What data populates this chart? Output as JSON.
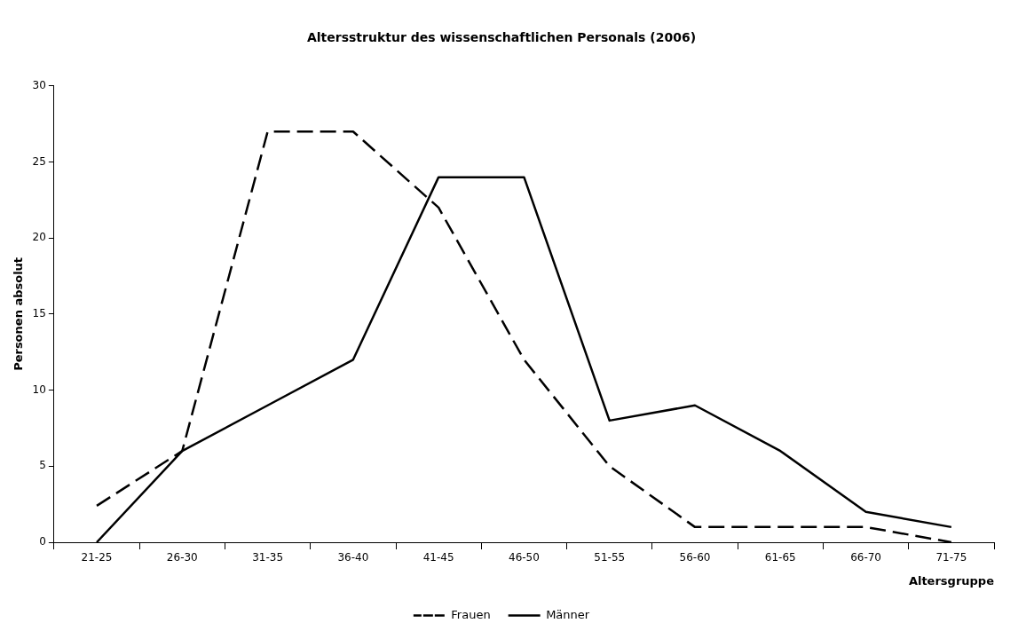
{
  "chart_data": {
    "type": "line",
    "title": "Altersstruktur des wissenschaftlichen Personals (2006)",
    "xlabel": "Altersgruppe",
    "ylabel": "Personen absolut",
    "categories": [
      "21-25",
      "26-30",
      "31-35",
      "36-40",
      "41-45",
      "46-50",
      "51-55",
      "56-60",
      "61-65",
      "66-70",
      "71-75"
    ],
    "series": [
      {
        "name": "Frauen",
        "color": "#000000",
        "line_style": "dashed",
        "values": [
          2.4,
          6,
          27,
          27,
          22,
          12,
          5,
          1,
          1,
          1,
          0
        ]
      },
      {
        "name": "Männer",
        "color": "#000000",
        "line_style": "solid",
        "values": [
          0,
          6,
          9,
          12,
          24,
          24,
          8,
          9,
          6,
          2,
          1
        ]
      }
    ],
    "ylim": [
      0,
      30
    ],
    "yticks": [
      0,
      5,
      10,
      15,
      20,
      25,
      30
    ],
    "grid": false,
    "legend": "bottom",
    "marker": "none"
  }
}
